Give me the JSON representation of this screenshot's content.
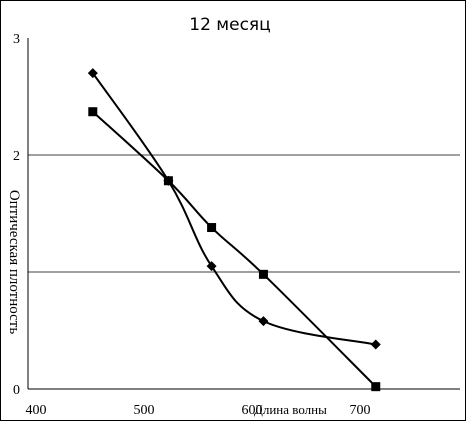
{
  "chart_data": {
    "type": "line",
    "title": "12 месяц",
    "xlabel": "Длина волны",
    "ylabel": "Оптическая плотность",
    "xlim": [
      400,
      800
    ],
    "ylim": [
      0,
      3
    ],
    "x_ticks": [
      "400",
      "500",
      "600",
      "700"
    ],
    "y_ticks": [
      "0",
      "2",
      "3"
    ],
    "grid": "horizontal",
    "legend": "none",
    "series": [
      {
        "marker": "diamond",
        "color": "#000000",
        "x": [
          460,
          530,
          570,
          618,
          722
        ],
        "y": [
          2.7,
          1.78,
          1.05,
          0.58,
          0.38
        ]
      },
      {
        "marker": "square",
        "color": "#000000",
        "x": [
          460,
          530,
          570,
          618,
          722
        ],
        "y": [
          2.37,
          1.78,
          1.38,
          0.98,
          0.02
        ]
      }
    ]
  }
}
